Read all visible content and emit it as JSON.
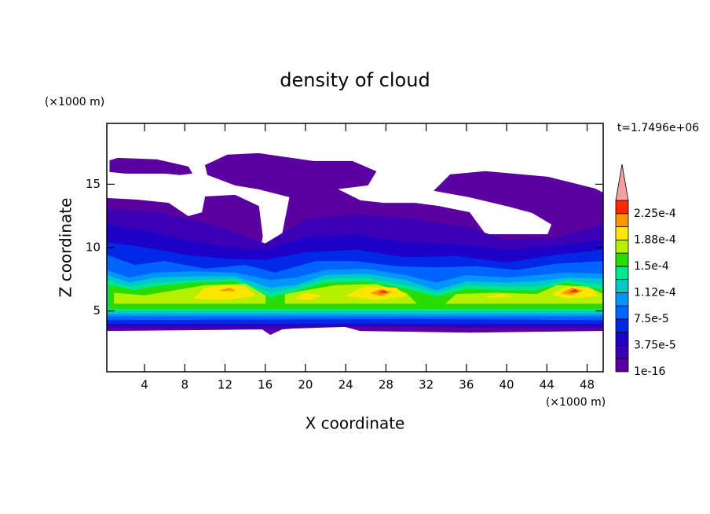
{
  "chart_data": {
    "type": "contour",
    "title": "density of cloud",
    "x_label": "X coordinate",
    "y_label": "Z coordinate",
    "x_unit": "(×1000 m)",
    "y_unit": "(×1000 m)",
    "time_label": "t=1.7496e+06",
    "xlim": [
      0.25,
      49.6
    ],
    "ylim": [
      0.2,
      19.8
    ],
    "xticks": [
      4,
      8,
      12,
      16,
      20,
      24,
      28,
      32,
      36,
      40,
      44,
      48
    ],
    "yticks": [
      5,
      10,
      15
    ],
    "levels": [
      1e-16,
      1.875e-05,
      3.75e-05,
      5.625e-05,
      7.5e-05,
      9.375e-05,
      0.0001125,
      0.00013125,
      0.00015,
      0.00016875,
      0.0001875,
      0.00020625,
      0.000225,
      0.00024375
    ],
    "colors": [
      "#5a00a0",
      "#3c00b4",
      "#1e00c8",
      "#0028e6",
      "#0064ff",
      "#0096ff",
      "#00c8c8",
      "#00e68c",
      "#28dc00",
      "#b4f000",
      "#ffe600",
      "#ff9600",
      "#ff2800"
    ],
    "overflow_color": "#f4a0a0",
    "colorbar_ticks": [
      1e-16,
      {
        "value": 3.75e-05,
        "label": "3.75e-5"
      },
      {
        "value": 7.5e-05,
        "label": "7.5e-5"
      },
      {
        "value": 0.0001125,
        "label": "1.12e-4"
      },
      {
        "value": 0.00015,
        "label": "1.5e-4"
      },
      {
        "value": 0.0001875,
        "label": "1.88e-4"
      },
      {
        "value": 0.000225,
        "label": "2.25e-4"
      }
    ],
    "regions": [
      [
        [
          [
            0.56,
            16.86
          ],
          [
            1.34,
            17.05
          ],
          [
            5.23,
            16.93
          ],
          [
            8.34,
            16.37
          ],
          [
            8.7,
            15.87
          ],
          [
            7.53,
            15.75
          ],
          [
            5.99,
            15.87
          ],
          [
            2.11,
            15.87
          ],
          [
            0.56,
            15.99
          ]
        ],
        [
          [
            0.25,
            3.45
          ],
          [
            0.25,
            13.88
          ],
          [
            3.28,
            13.75
          ],
          [
            6.39,
            13.5
          ],
          [
            8.34,
            12.45
          ],
          [
            9.74,
            12.76
          ],
          [
            10.05,
            14.0
          ],
          [
            13.0,
            14.13
          ],
          [
            15.34,
            13.26
          ],
          [
            15.72,
            10.9
          ],
          [
            15.34,
            9.16
          ],
          [
            16.5,
            9.66
          ],
          [
            17.67,
            10.9
          ],
          [
            18.45,
            14.0
          ],
          [
            15.34,
            14.63
          ],
          [
            13.0,
            14.94
          ],
          [
            10.28,
            15.75
          ],
          [
            10.05,
            16.49
          ],
          [
            12.23,
            17.3
          ],
          [
            15.34,
            17.42
          ],
          [
            20.78,
            16.8
          ],
          [
            24.67,
            16.8
          ],
          [
            27.0,
            16.0
          ],
          [
            26.2,
            14.94
          ],
          [
            23.1,
            14.63
          ],
          [
            25.45,
            13.7
          ],
          [
            27.8,
            13.5
          ],
          [
            30.9,
            13.5
          ],
          [
            33.2,
            13.26
          ],
          [
            36.3,
            12.76
          ],
          [
            37.9,
            11.02
          ],
          [
            44.1,
            11.02
          ],
          [
            44.5,
            11.83
          ],
          [
            42.55,
            12.76
          ],
          [
            40.2,
            13.26
          ],
          [
            36.3,
            14.0
          ],
          [
            32.83,
            14.5
          ],
          [
            34.4,
            15.75
          ],
          [
            37.9,
            16.0
          ],
          [
            44.1,
            15.56
          ],
          [
            48.8,
            14.63
          ],
          [
            49.6,
            14.3
          ],
          [
            49.6,
            3.45
          ],
          [
            36.3,
            3.32
          ],
          [
            25.45,
            3.45
          ],
          [
            23.1,
            3.94
          ],
          [
            17.67,
            3.57
          ],
          [
            16.5,
            3.14
          ],
          [
            15.72,
            3.57
          ]
        ]
      ],
      [
        [
          [
            0.25,
            3.7
          ],
          [
            0.25,
            13.0
          ],
          [
            5,
            12.8
          ],
          [
            8.5,
            12.2
          ],
          [
            12,
            11.5
          ],
          [
            16,
            10.3
          ],
          [
            20,
            12.2
          ],
          [
            25,
            12.6
          ],
          [
            30,
            12.3
          ],
          [
            36,
            11.6
          ],
          [
            40,
            10.6
          ],
          [
            45,
            10.8
          ],
          [
            49.6,
            11.8
          ],
          [
            49.6,
            3.7
          ],
          [
            36,
            3.7
          ],
          [
            25,
            3.8
          ],
          [
            17,
            3.6
          ]
        ]
      ],
      [
        [
          [
            0.25,
            3.9
          ],
          [
            0.25,
            11.8
          ],
          [
            4,
            11.3
          ],
          [
            8,
            10.6
          ],
          [
            12,
            10.0
          ],
          [
            16,
            9.8
          ],
          [
            20,
            10.8
          ],
          [
            25,
            11.0
          ],
          [
            30,
            10.4
          ],
          [
            35,
            10.2
          ],
          [
            40,
            9.8
          ],
          [
            45,
            10.1
          ],
          [
            49.6,
            10.6
          ],
          [
            49.6,
            3.9
          ]
        ]
      ],
      [
        [
          [
            0.25,
            4.0
          ],
          [
            0.25,
            10.4
          ],
          [
            4,
            10.0
          ],
          [
            8,
            9.4
          ],
          [
            12,
            9.1
          ],
          [
            16,
            9.0
          ],
          [
            20,
            9.6
          ],
          [
            25,
            9.8
          ],
          [
            30,
            9.2
          ],
          [
            35,
            9.3
          ],
          [
            40,
            8.8
          ],
          [
            45,
            9.4
          ],
          [
            49.6,
            9.8
          ],
          [
            49.6,
            4.0
          ]
        ]
      ],
      [
        [
          [
            0.25,
            4.3
          ],
          [
            0.25,
            9.4
          ],
          [
            3,
            8.6
          ],
          [
            6,
            8.9
          ],
          [
            10,
            8.3
          ],
          [
            14,
            8.6
          ],
          [
            17,
            8.0
          ],
          [
            21,
            8.9
          ],
          [
            25,
            8.9
          ],
          [
            29,
            8.5
          ],
          [
            33,
            8.4
          ],
          [
            37,
            8.5
          ],
          [
            41,
            8.2
          ],
          [
            45,
            8.7
          ],
          [
            49.6,
            8.9
          ],
          [
            49.6,
            4.3
          ],
          [
            30,
            4.4
          ]
        ]
      ],
      [
        [
          [
            0.25,
            4.6
          ],
          [
            0.25,
            8.2
          ],
          [
            2.5,
            7.6
          ],
          [
            5,
            8.0
          ],
          [
            9,
            8.1
          ],
          [
            13,
            8.0
          ],
          [
            16.5,
            7.4
          ],
          [
            19,
            7.6
          ],
          [
            22,
            8.2
          ],
          [
            26,
            8.3
          ],
          [
            30,
            7.8
          ],
          [
            33,
            7.2
          ],
          [
            36,
            7.8
          ],
          [
            40,
            7.6
          ],
          [
            43,
            7.8
          ],
          [
            46,
            8.0
          ],
          [
            49.6,
            7.9
          ],
          [
            49.6,
            4.6
          ]
        ]
      ],
      [
        [
          [
            0.25,
            4.8
          ],
          [
            0.25,
            7.8
          ],
          [
            2.5,
            7.2
          ],
          [
            5,
            7.6
          ],
          [
            9,
            7.7
          ],
          [
            13,
            7.7
          ],
          [
            16.5,
            6.8
          ],
          [
            19,
            7.0
          ],
          [
            22,
            7.8
          ],
          [
            26,
            7.9
          ],
          [
            30,
            7.4
          ],
          [
            33,
            6.6
          ],
          [
            36,
            7.3
          ],
          [
            40,
            7.2
          ],
          [
            43,
            7.3
          ],
          [
            46,
            7.6
          ],
          [
            49.6,
            7.5
          ],
          [
            49.6,
            4.8
          ]
        ]
      ],
      [
        [
          [
            0.25,
            5.0
          ],
          [
            0.25,
            7.4
          ],
          [
            2.5,
            6.9
          ],
          [
            5,
            7.2
          ],
          [
            9,
            7.4
          ],
          [
            13,
            7.5
          ],
          [
            16.5,
            6.4
          ],
          [
            19,
            6.8
          ],
          [
            22,
            7.5
          ],
          [
            26,
            7.6
          ],
          [
            30,
            7.0
          ],
          [
            33,
            6.4
          ],
          [
            36,
            7.0
          ],
          [
            40,
            6.9
          ],
          [
            43,
            6.9
          ],
          [
            46,
            7.4
          ],
          [
            49.6,
            7.0
          ],
          [
            49.6,
            5.0
          ]
        ]
      ],
      [
        [
          [
            0.5,
            5.2
          ],
          [
            0.5,
            7.0
          ],
          [
            3,
            6.6
          ],
          [
            5,
            6.9
          ],
          [
            9,
            7.2
          ],
          [
            13,
            7.3
          ],
          [
            16.5,
            6.0
          ],
          [
            19,
            6.5
          ],
          [
            22,
            7.2
          ],
          [
            26,
            7.3
          ],
          [
            30,
            6.7
          ],
          [
            33,
            6.1
          ],
          [
            36,
            6.7
          ],
          [
            40,
            6.6
          ],
          [
            43,
            6.6
          ],
          [
            46,
            7.2
          ],
          [
            49.6,
            6.6
          ],
          [
            49.6,
            5.2
          ]
        ]
      ],
      [
        [
          [
            1,
            5.6
          ],
          [
            1,
            6.4
          ],
          [
            4,
            6.2
          ],
          [
            7,
            6.6
          ],
          [
            10,
            7.0
          ],
          [
            14,
            7.1
          ],
          [
            16,
            6.2
          ],
          [
            16,
            5.6
          ]
        ],
        [
          [
            18,
            5.6
          ],
          [
            18,
            6.3
          ],
          [
            20,
            6.6
          ],
          [
            23,
            7.0
          ],
          [
            27,
            7.1
          ],
          [
            30,
            6.4
          ],
          [
            31,
            5.6
          ]
        ],
        [
          [
            34,
            5.6
          ],
          [
            35,
            6.3
          ],
          [
            39,
            6.4
          ],
          [
            43,
            6.3
          ],
          [
            45,
            7.0
          ],
          [
            48,
            6.9
          ],
          [
            49.6,
            6.3
          ],
          [
            49.6,
            5.6
          ]
        ]
      ],
      [
        [
          [
            9,
            6.0
          ],
          [
            10,
            6.8
          ],
          [
            12,
            7.0
          ],
          [
            14,
            6.9
          ],
          [
            15,
            6.2
          ],
          [
            12,
            5.9
          ]
        ],
        [
          [
            19,
            6.0
          ],
          [
            20,
            6.4
          ],
          [
            21.5,
            6.2
          ],
          [
            20.5,
            5.9
          ]
        ],
        [
          [
            24,
            6.2
          ],
          [
            26,
            6.9
          ],
          [
            29,
            6.8
          ],
          [
            30,
            6.2
          ],
          [
            27,
            5.9
          ]
        ],
        [
          [
            44.5,
            6.3
          ],
          [
            46,
            6.9
          ],
          [
            48.5,
            6.7
          ],
          [
            49,
            6.2
          ],
          [
            46,
            6.0
          ]
        ],
        [
          [
            38,
            6.1
          ],
          [
            39.5,
            6.3
          ],
          [
            40.5,
            6.1
          ]
        ]
      ],
      [
        [
          [
            26.5,
            6.4
          ],
          [
            27.5,
            6.7
          ],
          [
            28.5,
            6.5
          ],
          [
            27.5,
            6.2
          ]
        ],
        [
          [
            45.5,
            6.4
          ],
          [
            46.5,
            6.8
          ],
          [
            47.5,
            6.6
          ],
          [
            46.5,
            6.3
          ]
        ],
        [
          [
            11.5,
            6.6
          ],
          [
            12.5,
            6.8
          ],
          [
            13,
            6.6
          ]
        ]
      ],
      [
        [
          [
            27.3,
            6.45
          ],
          [
            27.8,
            6.6
          ],
          [
            28.1,
            6.45
          ]
        ],
        [
          [
            46.3,
            6.5
          ],
          [
            46.8,
            6.7
          ],
          [
            47.1,
            6.5
          ]
        ]
      ]
    ]
  }
}
